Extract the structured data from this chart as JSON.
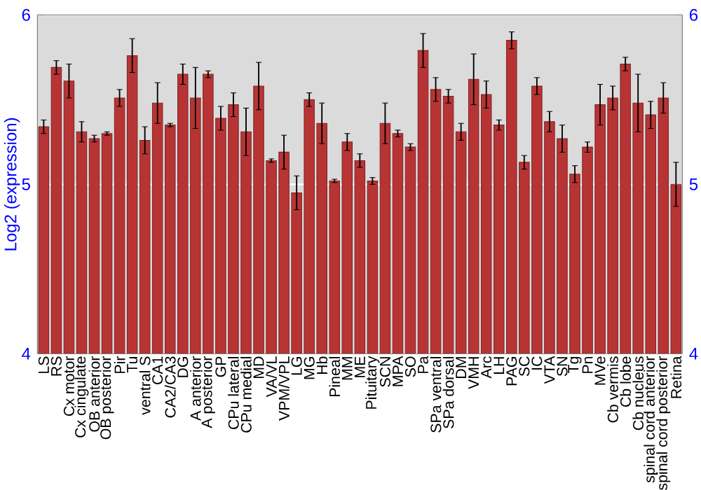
{
  "chart_data": {
    "type": "bar",
    "ylabel": "Log2 (expression)",
    "categories": [
      "LS",
      "RS",
      "Cx motor",
      "Cx cingulate",
      "OB anterior",
      "OB posterior",
      "Pir",
      "Tu",
      "ventral S",
      "CA1",
      "CA2/CA3",
      "DG",
      "A anterior",
      "A posterior",
      "GP",
      "CPu lateral",
      "CPu medial",
      "MD",
      "VA/VL",
      "VPM/VPL",
      "LG",
      "MG",
      "Hb",
      "Pineal",
      "MM",
      "ME",
      "Pituitary",
      "SCN",
      "MPA",
      "SO",
      "Pa",
      "SPa ventral",
      "SPa dorsal",
      "DM",
      "VMH",
      "Arc",
      "LH",
      "PAG",
      "SC",
      "IC",
      "VTA",
      "SN",
      "Tg",
      "Pn",
      "MVe",
      "Cb vermis",
      "Cb lobe",
      "Cb nucleus",
      "spinal cord anterior",
      "spinal cord posterior",
      "Retina"
    ],
    "values": [
      5.34,
      5.69,
      5.61,
      5.31,
      5.27,
      5.3,
      5.51,
      5.76,
      5.26,
      5.48,
      5.35,
      5.65,
      5.51,
      5.65,
      5.39,
      5.47,
      5.31,
      5.58,
      5.14,
      5.19,
      4.95,
      5.5,
      5.36,
      5.02,
      5.25,
      5.14,
      5.02,
      5.36,
      5.3,
      5.22,
      5.79,
      5.56,
      5.52,
      5.31,
      5.62,
      5.53,
      5.35,
      5.85,
      5.13,
      5.58,
      5.37,
      5.27,
      5.06,
      5.22,
      5.47,
      5.51,
      5.71,
      5.48,
      5.41,
      5.51,
      5.0
    ],
    "errors": [
      0.04,
      0.04,
      0.1,
      0.06,
      0.02,
      0.01,
      0.05,
      0.1,
      0.08,
      0.12,
      0.01,
      0.06,
      0.18,
      0.02,
      0.07,
      0.07,
      0.14,
      0.14,
      0.01,
      0.1,
      0.1,
      0.04,
      0.12,
      0.01,
      0.05,
      0.04,
      0.02,
      0.12,
      0.02,
      0.02,
      0.1,
      0.07,
      0.04,
      0.05,
      0.15,
      0.08,
      0.03,
      0.05,
      0.04,
      0.05,
      0.06,
      0.08,
      0.05,
      0.03,
      0.12,
      0.07,
      0.04,
      0.17,
      0.08,
      0.09,
      0.13
    ],
    "color": "#b83434",
    "ylim": [
      4,
      6
    ],
    "yticks": [
      4,
      5,
      6
    ],
    "y2lim": [
      4,
      6
    ],
    "y2ticks": [
      4,
      5,
      6
    ],
    "grid": "y"
  }
}
